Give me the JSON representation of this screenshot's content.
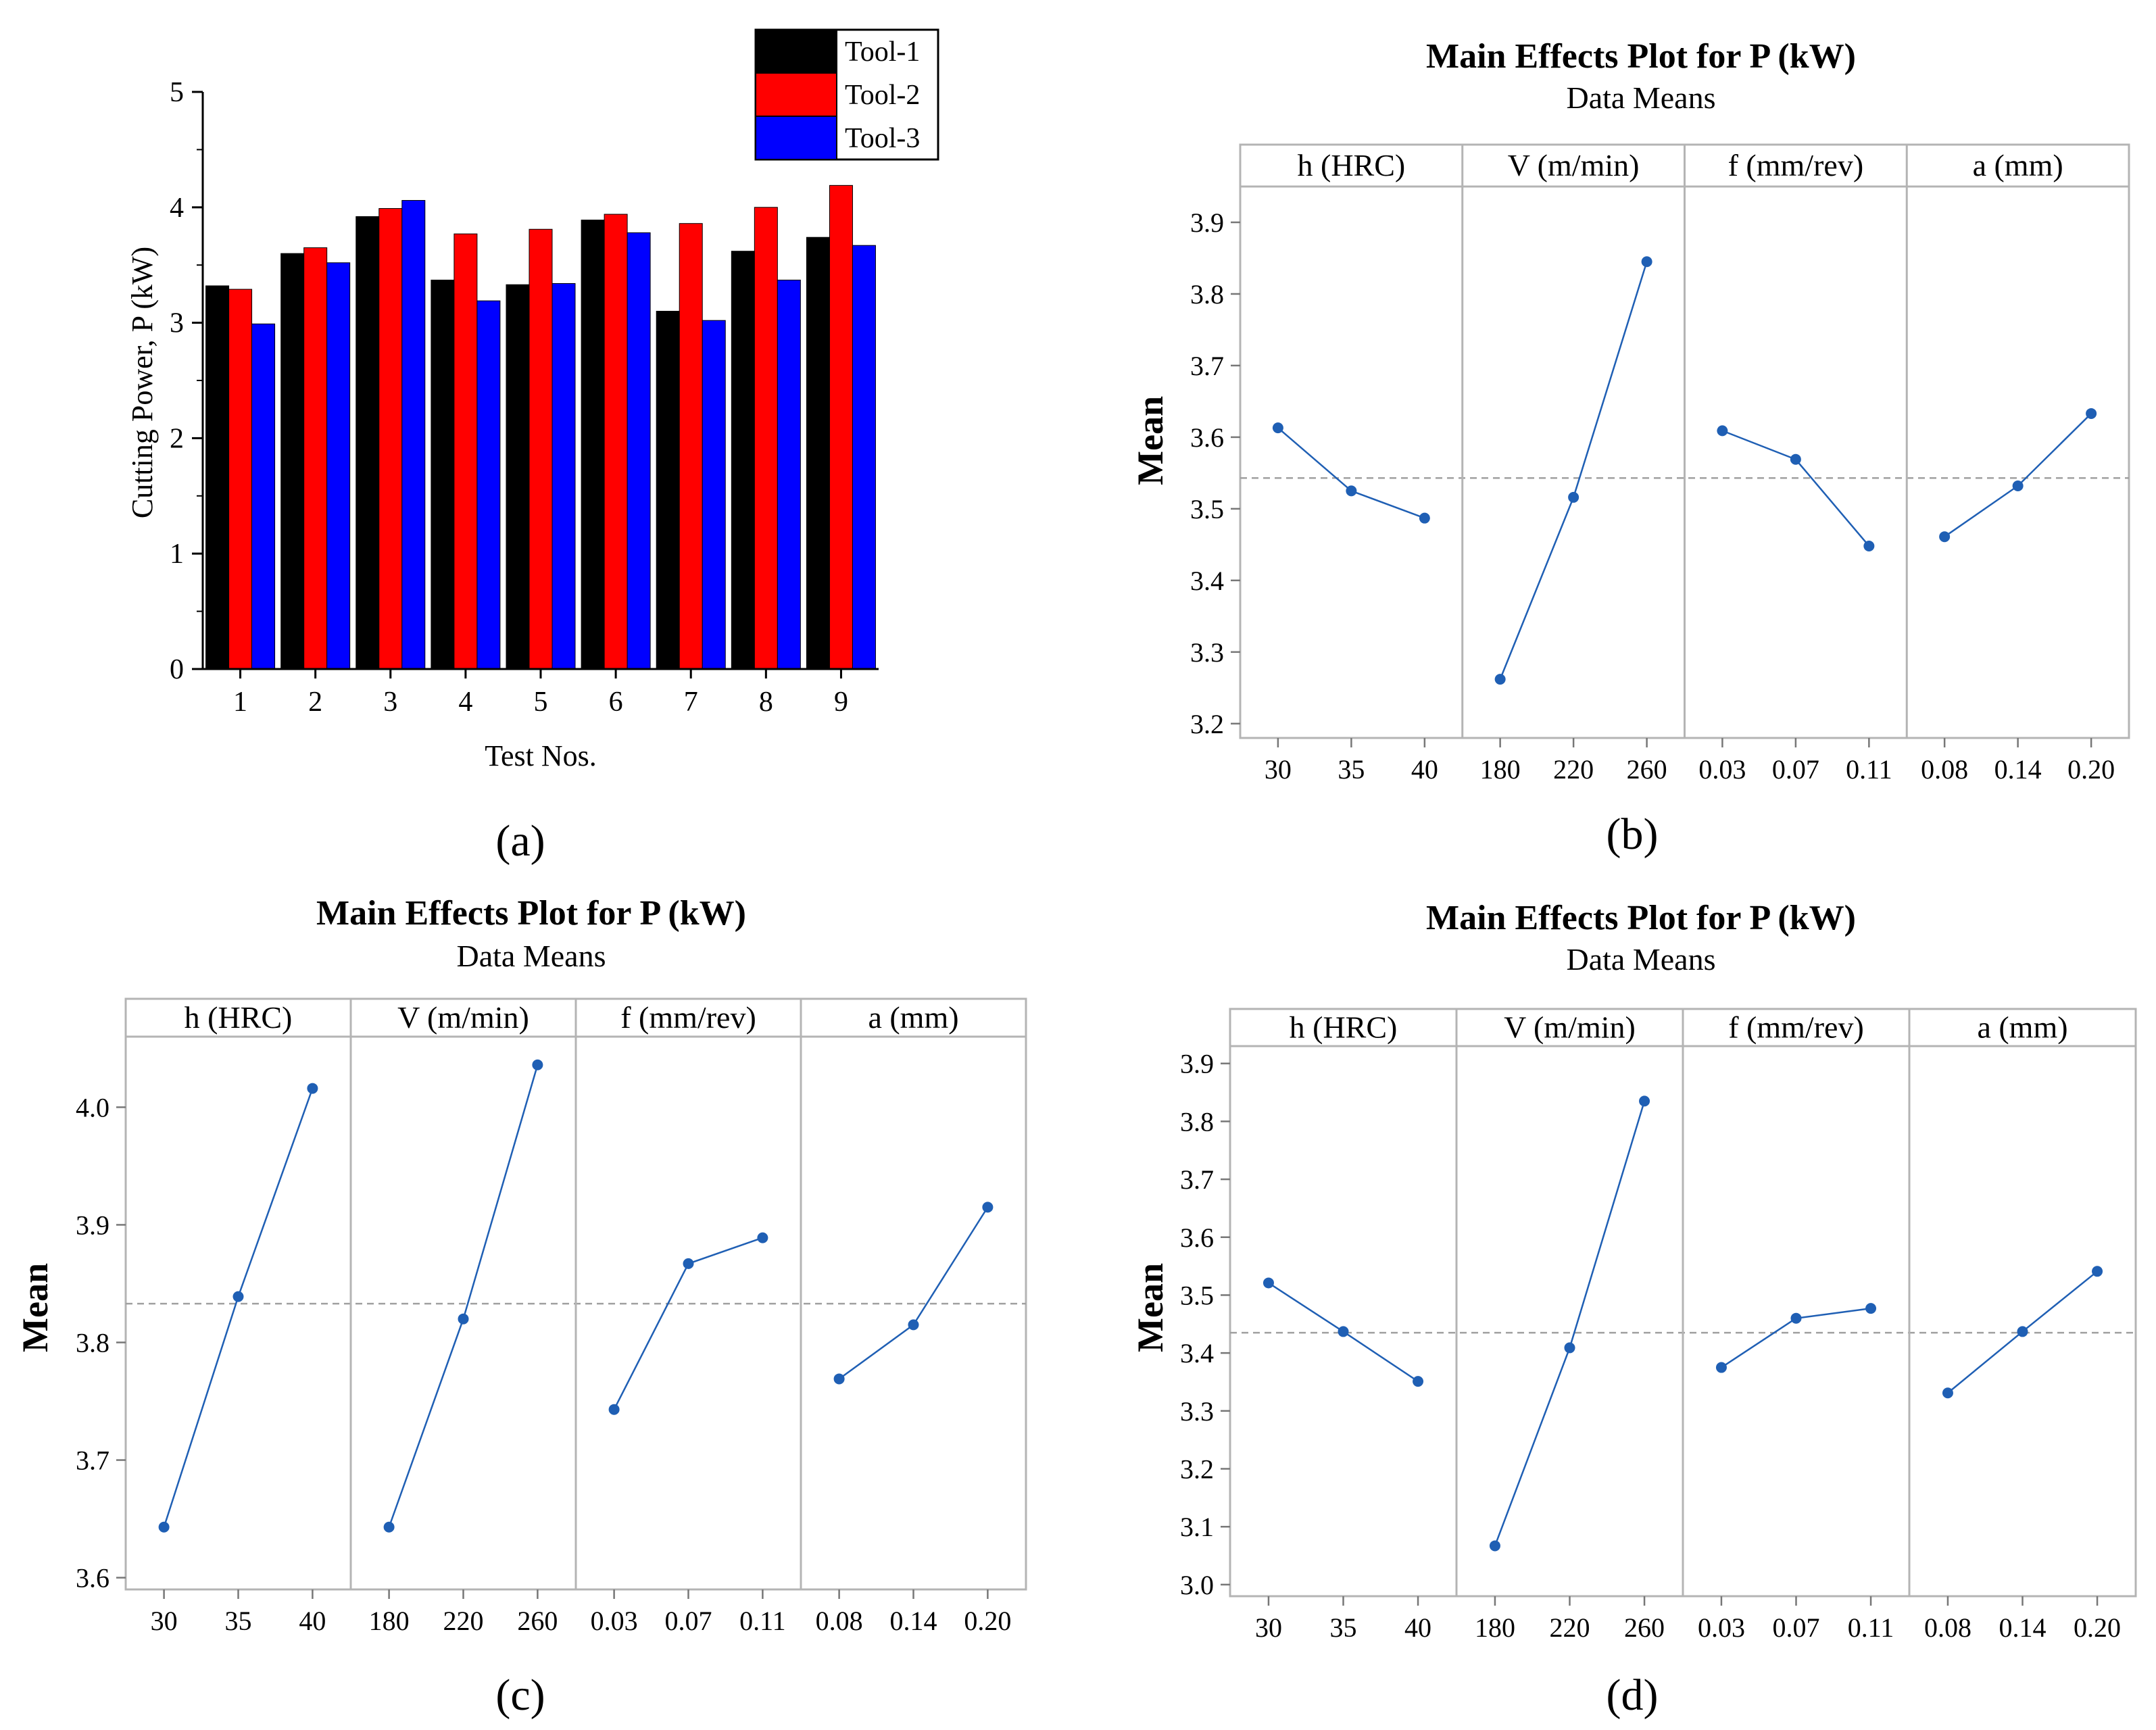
{
  "colors": {
    "tool1": "#000000",
    "tool2": "#ff0000",
    "tool3": "#0000ff",
    "line": "#1f5fb4",
    "frame": "#b4b4b4",
    "refline": "#a0a0a0"
  },
  "chart_data": [
    {
      "id": "a",
      "type": "bar",
      "panel_label": "(a)",
      "title": "",
      "xlabel": "Test Nos.",
      "ylabel": "Cutting Power, P (kW)",
      "categories": [
        "1",
        "2",
        "3",
        "4",
        "5",
        "6",
        "7",
        "8",
        "9"
      ],
      "ylim": [
        0,
        5
      ],
      "yticks": [
        "0",
        "1",
        "2",
        "3",
        "4",
        "5"
      ],
      "legend_position": "top-right",
      "series": [
        {
          "name": "Tool-1",
          "values": [
            3.32,
            3.6,
            3.92,
            3.37,
            3.33,
            3.89,
            3.1,
            3.62,
            3.74
          ]
        },
        {
          "name": "Tool-2",
          "values": [
            3.29,
            3.65,
            3.99,
            3.77,
            3.81,
            3.94,
            3.86,
            4.0,
            4.19
          ]
        },
        {
          "name": "Tool-3",
          "values": [
            2.99,
            3.52,
            4.06,
            3.19,
            3.34,
            3.78,
            3.02,
            3.37,
            3.67
          ]
        }
      ]
    },
    {
      "id": "b",
      "type": "line",
      "panel_label": "(b)",
      "title": "Main Effects Plot for P (kW)",
      "subtitle": "Data Means",
      "ylabel": "Mean",
      "ylim": [
        3.18,
        3.95
      ],
      "yticks": [
        "3.2",
        "3.3",
        "3.4",
        "3.5",
        "3.6",
        "3.7",
        "3.8",
        "3.9"
      ],
      "mean": 3.543,
      "panels": [
        {
          "factor": "h (HRC)",
          "levels": [
            "30",
            "35",
            "40"
          ],
          "values": [
            3.613,
            3.525,
            3.487
          ]
        },
        {
          "factor": "V (m/min)",
          "levels": [
            "180",
            "220",
            "260"
          ],
          "values": [
            3.262,
            3.516,
            3.845
          ]
        },
        {
          "factor": "f (mm/rev)",
          "levels": [
            "0.03",
            "0.07",
            "0.11"
          ],
          "values": [
            3.609,
            3.569,
            3.448
          ]
        },
        {
          "factor": "a (mm)",
          "levels": [
            "0.08",
            "0.14",
            "0.20"
          ],
          "values": [
            3.461,
            3.532,
            3.633
          ]
        }
      ]
    },
    {
      "id": "c",
      "type": "line",
      "panel_label": "(c)",
      "title": "Main Effects Plot for P (kW)",
      "subtitle": "Data Means",
      "ylabel": "Mean",
      "ylim": [
        3.59,
        4.06
      ],
      "yticks": [
        "3.6",
        "3.7",
        "3.8",
        "3.9",
        "4.0"
      ],
      "mean": 3.833,
      "panels": [
        {
          "factor": "h (HRC)",
          "levels": [
            "30",
            "35",
            "40"
          ],
          "values": [
            3.643,
            3.839,
            4.016
          ]
        },
        {
          "factor": "V (m/min)",
          "levels": [
            "180",
            "220",
            "260"
          ],
          "values": [
            3.643,
            3.82,
            4.036
          ]
        },
        {
          "factor": "f (mm/rev)",
          "levels": [
            "0.03",
            "0.07",
            "0.11"
          ],
          "values": [
            3.743,
            3.867,
            3.889
          ]
        },
        {
          "factor": "a (mm)",
          "levels": [
            "0.08",
            "0.14",
            "0.20"
          ],
          "values": [
            3.769,
            3.815,
            3.915
          ]
        }
      ]
    },
    {
      "id": "d",
      "type": "line",
      "panel_label": "(d)",
      "title": "Main Effects Plot for P (kW)",
      "subtitle": "Data Means",
      "ylabel": "Mean",
      "ylim": [
        2.98,
        3.93
      ],
      "yticks": [
        "3.0",
        "3.1",
        "3.2",
        "3.3",
        "3.4",
        "3.5",
        "3.6",
        "3.7",
        "3.8",
        "3.9"
      ],
      "mean": 3.435,
      "panels": [
        {
          "factor": "h (HRC)",
          "levels": [
            "30",
            "35",
            "40"
          ],
          "values": [
            3.521,
            3.437,
            3.351
          ]
        },
        {
          "factor": "V (m/min)",
          "levels": [
            "180",
            "220",
            "260"
          ],
          "values": [
            3.067,
            3.409,
            3.835
          ]
        },
        {
          "factor": "f (mm/rev)",
          "levels": [
            "0.03",
            "0.07",
            "0.11"
          ],
          "values": [
            3.375,
            3.46,
            3.477
          ]
        },
        {
          "factor": "a (mm)",
          "levels": [
            "0.08",
            "0.14",
            "0.20"
          ],
          "values": [
            3.331,
            3.437,
            3.541
          ]
        }
      ]
    }
  ]
}
